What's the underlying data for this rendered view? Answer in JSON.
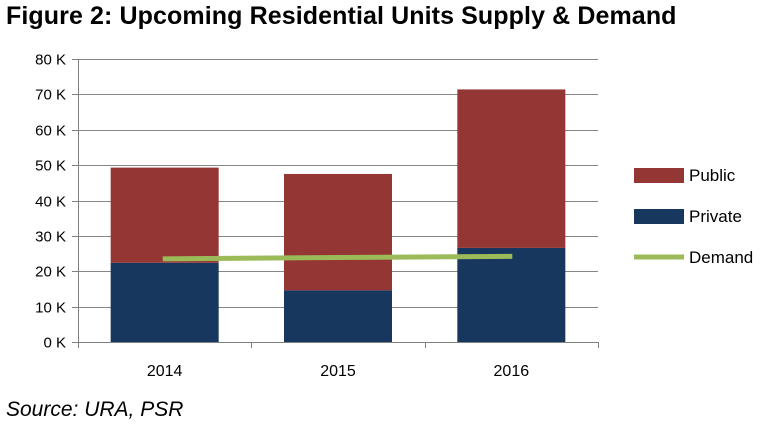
{
  "title": "Figure 2: Upcoming Residential Units Supply & Demand",
  "source": "Source: URA, PSR",
  "colors": {
    "public": "#943634",
    "private": "#17375e",
    "demand": "#9bbb59",
    "axis": "#808080"
  },
  "chart_data": {
    "type": "bar",
    "stacked": true,
    "title": "Figure 2: Upcoming Residential Units Supply & Demand",
    "xlabel": "",
    "ylabel": "",
    "categories": [
      "2014",
      "2015",
      "2016"
    ],
    "series": [
      {
        "name": "Private",
        "type": "bar",
        "values": [
          22400,
          14600,
          26600
        ]
      },
      {
        "name": "Public",
        "type": "bar",
        "values": [
          26900,
          32900,
          44800
        ]
      },
      {
        "name": "Demand",
        "type": "line",
        "values": [
          23500,
          23900,
          24200
        ]
      }
    ],
    "ylim": [
      0,
      80000
    ],
    "yticks": [
      0,
      10000,
      20000,
      30000,
      40000,
      50000,
      60000,
      70000,
      80000
    ],
    "ytick_labels": [
      "0 K",
      "10 K",
      "20 K",
      "30 K",
      "40 K",
      "50 K",
      "60 K",
      "70 K",
      "80 K"
    ],
    "legend": {
      "position": "right",
      "entries": [
        "Public",
        "Private",
        "Demand"
      ]
    }
  }
}
